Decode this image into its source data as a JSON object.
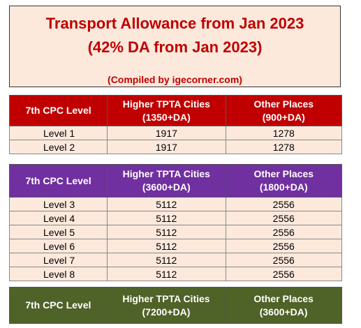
{
  "title": {
    "line1": "Transport Allowance from Jan 2023",
    "line2": "(42% DA from Jan 2023)",
    "credit": "(Compiled by igecorner.com)"
  },
  "colors": {
    "red": "#c00000",
    "purple": "#7030a0",
    "green": "#4f6228",
    "cell_bg": "#fce9dc"
  },
  "tables": [
    {
      "headers": [
        "7th CPC Level",
        "Higher TPTA Cities",
        "(1350+DA)",
        "Other Places",
        "(900+DA)"
      ],
      "rows": [
        [
          "Level 1",
          "1917",
          "1278"
        ],
        [
          "Level 2",
          "1917",
          "1278"
        ]
      ]
    },
    {
      "headers": [
        "7th CPC Level",
        "Higher TPTA Cities",
        "(3600+DA)",
        "Other Places",
        "(1800+DA)"
      ],
      "rows": [
        [
          "Level 3",
          "5112",
          "2556"
        ],
        [
          "Level 4",
          "5112",
          "2556"
        ],
        [
          "Level 5",
          "5112",
          "2556"
        ],
        [
          "Level 6",
          "5112",
          "2556"
        ],
        [
          "Level 7",
          "5112",
          "2556"
        ],
        [
          "Level 8",
          "5112",
          "2556"
        ]
      ]
    },
    {
      "headers": [
        "7th CPC Level",
        "Higher TPTA Cities",
        "(7200+DA)",
        "Other Places",
        "(3600+DA)"
      ],
      "rows": []
    }
  ]
}
